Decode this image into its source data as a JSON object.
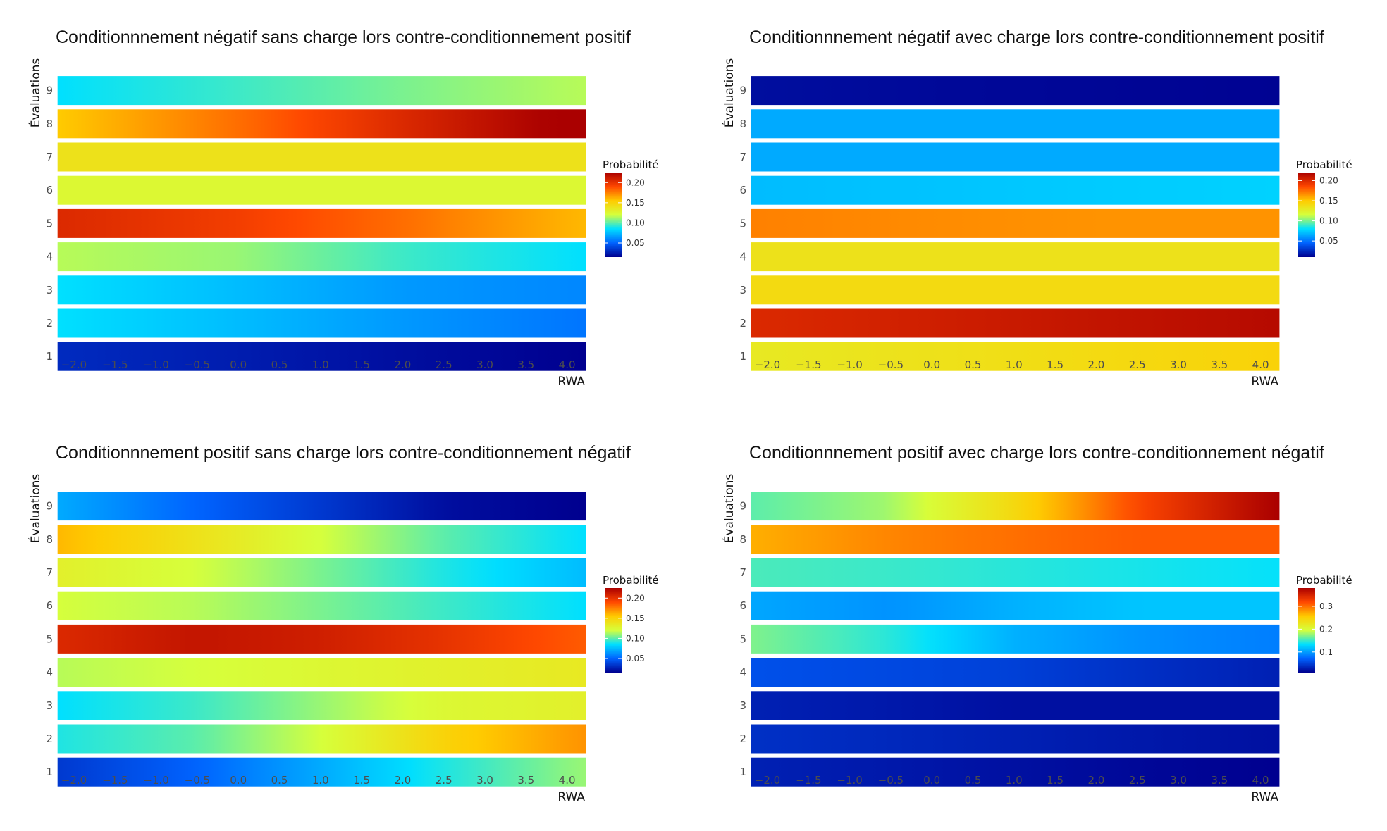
{
  "chart_data": [
    {
      "type": "heatmap",
      "title": "Conditionnnement négatif sans charge lors contre-conditionnement positif",
      "xlabel": "RWA",
      "ylabel": "Évaluations",
      "x_ticks": [
        "−2.0",
        "−1.5",
        "−1.0",
        "−0.5",
        "0.0",
        "0.5",
        "1.0",
        "1.5",
        "2.0",
        "2.5",
        "3.0",
        "3.5",
        "4.0"
      ],
      "xlim": [
        -2.2,
        4.23
      ],
      "y_categories": [
        "1",
        "2",
        "3",
        "4",
        "5",
        "6",
        "7",
        "8",
        "9"
      ],
      "x": [
        -2.2,
        0.0,
        2.0,
        4.2
      ],
      "z": [
        [
          0.03,
          0.025,
          0.02,
          0.015
        ],
        [
          0.085,
          0.075,
          0.065,
          0.055
        ],
        [
          0.085,
          0.075,
          0.065,
          0.06
        ],
        [
          0.115,
          0.11,
          0.095,
          0.085
        ],
        [
          0.205,
          0.195,
          0.18,
          0.16
        ],
        [
          0.125,
          0.125,
          0.125,
          0.125
        ],
        [
          0.14,
          0.14,
          0.14,
          0.14
        ],
        [
          0.155,
          0.18,
          0.205,
          0.23
        ],
        [
          0.085,
          0.095,
          0.105,
          0.115
        ]
      ],
      "legend": {
        "title": "Probabilité",
        "ticks": [
          "0.05",
          "0.10",
          "0.15",
          "0.20"
        ],
        "tick_values": [
          0.05,
          0.1,
          0.15,
          0.2
        ],
        "range": [
          0.015,
          0.225
        ]
      },
      "colorscale": [
        "#00008f",
        "#0063ff",
        "#00e0ff",
        "#d6ff3c",
        "#ffcb00",
        "#ff4800",
        "#aa0000"
      ]
    },
    {
      "type": "heatmap",
      "title": "Conditionnnement négatif avec charge lors contre-conditionnement positif",
      "xlabel": "RWA",
      "ylabel": "Évaluations",
      "x_ticks": [
        "−2.0",
        "−1.5",
        "−1.0",
        "−0.5",
        "0.0",
        "0.5",
        "1.0",
        "1.5",
        "2.0",
        "2.5",
        "3.0",
        "3.5",
        "4.0"
      ],
      "xlim": [
        -2.2,
        4.23
      ],
      "y_categories": [
        "1",
        "2",
        "3",
        "4",
        "5",
        "6",
        "7",
        "8",
        "9"
      ],
      "x": [
        -2.2,
        0.0,
        2.0,
        4.2
      ],
      "z": [
        [
          0.13,
          0.135,
          0.14,
          0.145
        ],
        [
          0.2,
          0.205,
          0.21,
          0.215
        ],
        [
          0.14,
          0.14,
          0.14,
          0.14
        ],
        [
          0.135,
          0.135,
          0.135,
          0.135
        ],
        [
          0.17,
          0.167,
          0.165,
          0.165
        ],
        [
          0.07,
          0.072,
          0.074,
          0.076
        ],
        [
          0.065,
          0.065,
          0.065,
          0.065
        ],
        [
          0.065,
          0.065,
          0.065,
          0.065
        ],
        [
          0.015,
          0.013,
          0.012,
          0.011
        ]
      ],
      "legend": {
        "title": "Probabilité",
        "ticks": [
          "0.05",
          "0.10",
          "0.15",
          "0.20"
        ],
        "tick_values": [
          0.05,
          0.1,
          0.15,
          0.2
        ],
        "range": [
          0.01,
          0.22
        ]
      },
      "colorscale": [
        "#00008f",
        "#0063ff",
        "#00e0ff",
        "#d6ff3c",
        "#ffcb00",
        "#ff4800",
        "#aa0000"
      ]
    },
    {
      "type": "heatmap",
      "title": "Conditionnnement positif sans charge lors contre-conditionnement négatif",
      "xlabel": "RWA",
      "ylabel": "Évaluations",
      "x_ticks": [
        "−2.0",
        "−1.5",
        "−1.0",
        "−0.5",
        "0.0",
        "0.5",
        "1.0",
        "1.5",
        "2.0",
        "2.5",
        "3.0",
        "3.5",
        "4.0"
      ],
      "xlim": [
        -2.2,
        4.23
      ],
      "y_categories": [
        "1",
        "2",
        "3",
        "4",
        "5",
        "6",
        "7",
        "8",
        "9"
      ],
      "x": [
        -2.2,
        -0.5,
        1.0,
        2.5,
        4.2
      ],
      "z": [
        [
          0.035,
          0.05,
          0.07,
          0.09,
          0.11
        ],
        [
          0.09,
          0.1,
          0.12,
          0.15,
          0.17
        ],
        [
          0.085,
          0.095,
          0.11,
          0.125,
          0.13
        ],
        [
          0.115,
          0.12,
          0.125,
          0.13,
          0.135
        ],
        [
          0.205,
          0.215,
          0.21,
          0.2,
          0.185
        ],
        [
          0.12,
          0.115,
          0.105,
          0.095,
          0.085
        ],
        [
          0.13,
          0.12,
          0.105,
          0.09,
          0.075
        ],
        [
          0.16,
          0.14,
          0.12,
          0.1,
          0.085
        ],
        [
          0.07,
          0.05,
          0.035,
          0.02,
          0.015
        ]
      ],
      "legend": {
        "title": "Probabilité",
        "ticks": [
          "0.05",
          "0.10",
          "0.15",
          "0.20"
        ],
        "tick_values": [
          0.05,
          0.1,
          0.15,
          0.2
        ],
        "range": [
          0.015,
          0.225
        ]
      },
      "colorscale": [
        "#00008f",
        "#0063ff",
        "#00e0ff",
        "#d6ff3c",
        "#ffcb00",
        "#ff4800",
        "#aa0000"
      ]
    },
    {
      "type": "heatmap",
      "title": "Conditionnnement positif avec charge lors contre-conditionnement négatif",
      "xlabel": "RWA",
      "ylabel": "Évaluations",
      "x_ticks": [
        "−2.0",
        "−1.5",
        "−1.0",
        "−0.5",
        "0.0",
        "0.5",
        "1.0",
        "1.5",
        "2.0",
        "2.5",
        "3.0",
        "3.5",
        "4.0"
      ],
      "xlim": [
        -2.2,
        4.23
      ],
      "y_categories": [
        "1",
        "2",
        "3",
        "4",
        "5",
        "6",
        "7",
        "8",
        "9"
      ],
      "x": [
        -2.2,
        -0.5,
        1.0,
        2.5,
        4.2
      ],
      "z": [
        [
          0.03,
          0.025,
          0.02,
          0.015,
          0.01
        ],
        [
          0.04,
          0.035,
          0.03,
          0.025,
          0.02
        ],
        [
          0.03,
          0.025,
          0.02,
          0.02,
          0.02
        ],
        [
          0.06,
          0.055,
          0.05,
          0.04,
          0.03
        ],
        [
          0.17,
          0.145,
          0.11,
          0.095,
          0.085
        ],
        [
          0.105,
          0.095,
          0.11,
          0.12,
          0.12
        ],
        [
          0.155,
          0.15,
          0.145,
          0.14,
          0.135
        ],
        [
          0.27,
          0.29,
          0.3,
          0.31,
          0.31
        ],
        [
          0.16,
          0.18,
          0.24,
          0.32,
          0.38
        ]
      ],
      "legend": {
        "title": "Probabilité",
        "ticks": [
          "0.1",
          "0.2",
          "0.3"
        ],
        "tick_values": [
          0.1,
          0.2,
          0.3
        ],
        "range": [
          0.01,
          0.38
        ]
      },
      "colorscale": [
        "#00008f",
        "#0063ff",
        "#00e0ff",
        "#d6ff3c",
        "#ffcb00",
        "#ff4800",
        "#aa0000"
      ]
    }
  ]
}
